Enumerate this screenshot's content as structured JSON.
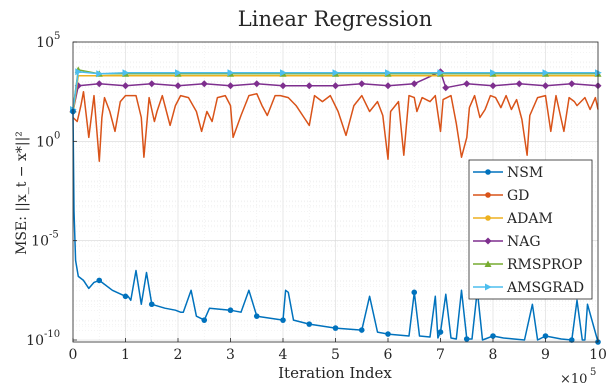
{
  "chart_data": {
    "type": "line",
    "title": "Linear Regression",
    "xlabel": "Iteration Index",
    "ylabel": "MSE: ||x_t − x*||²",
    "x_multiplier_label": "×10",
    "x_multiplier_exp": "5",
    "xlim": [
      0,
      10
    ],
    "ylim_log10": [
      -10.1,
      5
    ],
    "y_log_scale": true,
    "grid": true,
    "legend_position": "right",
    "x_ticks": [
      "0",
      "1",
      "2",
      "3",
      "4",
      "5",
      "6",
      "7",
      "8",
      "9",
      "10"
    ],
    "y_ticks": [
      {
        "base": "10",
        "exp": "5",
        "log": 5
      },
      {
        "base": "10",
        "exp": "0",
        "log": 0
      },
      {
        "base": "10",
        "exp": "-5",
        "log": -5
      },
      {
        "base": "10",
        "exp": "-10",
        "log": -10
      }
    ],
    "series": [
      {
        "name": "NSM",
        "color": "#0072BD",
        "marker": "circle",
        "points": [
          [
            0,
            1.5
          ],
          [
            0.02,
            -3.5
          ],
          [
            0.05,
            -6
          ],
          [
            0.1,
            -6.8
          ],
          [
            0.2,
            -7.0
          ],
          [
            0.3,
            -7.4
          ],
          [
            0.4,
            -7.1
          ],
          [
            0.5,
            -7.0
          ],
          [
            0.75,
            -7.5
          ],
          [
            1.0,
            -7.8
          ],
          [
            1.05,
            -7.8
          ],
          [
            1.1,
            -8.0
          ],
          [
            1.2,
            -6.5
          ],
          [
            1.3,
            -8.2
          ],
          [
            1.4,
            -6.6
          ],
          [
            1.5,
            -8.2
          ],
          [
            1.75,
            -8.4
          ],
          [
            1.95,
            -8.5
          ],
          [
            2.05,
            -8.6
          ],
          [
            2.1,
            -8.6
          ],
          [
            2.25,
            -7.5
          ],
          [
            2.35,
            -8.8
          ],
          [
            2.5,
            -9.0
          ],
          [
            2.6,
            -8.4
          ],
          [
            3.0,
            -8.5
          ],
          [
            3.2,
            -8.6
          ],
          [
            3.35,
            -7.5
          ],
          [
            3.5,
            -8.8
          ],
          [
            4.0,
            -9.0
          ],
          [
            4.05,
            -7.5
          ],
          [
            4.1,
            -7.6
          ],
          [
            4.2,
            -9.0
          ],
          [
            4.5,
            -9.2
          ],
          [
            5.0,
            -9.4
          ],
          [
            5.5,
            -9.5
          ],
          [
            5.65,
            -7.8
          ],
          [
            5.8,
            -9.6
          ],
          [
            6.0,
            -9.7
          ],
          [
            6.4,
            -9.8
          ],
          [
            6.5,
            -7.6
          ],
          [
            6.6,
            -9.8
          ],
          [
            6.8,
            -9.85
          ],
          [
            6.9,
            -7.8
          ],
          [
            6.95,
            -9.9
          ],
          [
            7.0,
            -9.6
          ],
          [
            7.1,
            -7.7
          ],
          [
            7.2,
            -9.9
          ],
          [
            7.3,
            -9.95
          ],
          [
            7.4,
            -7.5
          ],
          [
            7.5,
            -9.95
          ],
          [
            7.6,
            -9.95
          ],
          [
            7.7,
            -7.5
          ],
          [
            7.8,
            -10.0
          ],
          [
            8.0,
            -9.8
          ],
          [
            8.2,
            -9.9
          ],
          [
            8.4,
            -9.95
          ],
          [
            8.6,
            -10.0
          ],
          [
            8.75,
            -8.2
          ],
          [
            8.85,
            -10.0
          ],
          [
            9.0,
            -9.8
          ],
          [
            9.2,
            -9.9
          ],
          [
            9.3,
            -9.95
          ],
          [
            9.5,
            -10.0
          ],
          [
            9.6,
            -8.0
          ],
          [
            9.7,
            -10.0
          ],
          [
            9.75,
            -10.0
          ],
          [
            9.8,
            -8.2
          ],
          [
            10.0,
            -10.1
          ]
        ]
      },
      {
        "name": "GD",
        "color": "#D95319",
        "marker": "none",
        "points": [
          [
            0,
            1.2
          ],
          [
            0.08,
            1.0
          ],
          [
            0.15,
            1.8
          ],
          [
            0.2,
            2.5
          ],
          [
            0.3,
            0.2
          ],
          [
            0.4,
            2.3
          ],
          [
            0.5,
            -1.0
          ],
          [
            0.55,
            1.2
          ],
          [
            0.6,
            2.2
          ],
          [
            0.7,
            1.5
          ],
          [
            0.8,
            0.5
          ],
          [
            0.9,
            2.0
          ],
          [
            1.0,
            2.3
          ],
          [
            1.2,
            2.3
          ],
          [
            1.3,
            1.2
          ],
          [
            1.35,
            -0.8
          ],
          [
            1.45,
            2.2
          ],
          [
            1.55,
            1.0
          ],
          [
            1.6,
            1.5
          ],
          [
            1.7,
            2.3
          ],
          [
            1.8,
            1.3
          ],
          [
            1.85,
            0.8
          ],
          [
            1.95,
            1.8
          ],
          [
            2.05,
            2.3
          ],
          [
            2.2,
            2.2
          ],
          [
            2.35,
            1.5
          ],
          [
            2.45,
            0.5
          ],
          [
            2.55,
            1.5
          ],
          [
            2.65,
            1.0
          ],
          [
            2.75,
            2.2
          ],
          [
            2.9,
            2.3
          ],
          [
            3.0,
            1.8
          ],
          [
            3.05,
            0.2
          ],
          [
            3.2,
            1.3
          ],
          [
            3.35,
            2.3
          ],
          [
            3.5,
            2.4
          ],
          [
            3.6,
            1.8
          ],
          [
            3.7,
            1.3
          ],
          [
            3.85,
            2.3
          ],
          [
            3.95,
            2.3
          ],
          [
            4.1,
            2.2
          ],
          [
            4.25,
            1.8
          ],
          [
            4.4,
            1.2
          ],
          [
            4.5,
            0.8
          ],
          [
            4.6,
            2.3
          ],
          [
            4.75,
            2.0
          ],
          [
            4.9,
            2.3
          ],
          [
            5.05,
            1.5
          ],
          [
            5.2,
            0.3
          ],
          [
            5.35,
            1.8
          ],
          [
            5.5,
            2.3
          ],
          [
            5.65,
            1.5
          ],
          [
            5.8,
            2.0
          ],
          [
            5.9,
            1.3
          ],
          [
            6.0,
            -0.9
          ],
          [
            6.05,
            1.5
          ],
          [
            6.2,
            2.0
          ],
          [
            6.3,
            -0.7
          ],
          [
            6.4,
            2.3
          ],
          [
            6.5,
            2.2
          ],
          [
            6.55,
            1.5
          ],
          [
            6.65,
            2.2
          ],
          [
            6.8,
            2.0
          ],
          [
            6.9,
            2.3
          ],
          [
            7.0,
            0.5
          ],
          [
            7.05,
            2.1
          ],
          [
            7.2,
            2.3
          ],
          [
            7.3,
            0.9
          ],
          [
            7.4,
            -0.8
          ],
          [
            7.5,
            0.2
          ],
          [
            7.55,
            1.7
          ],
          [
            7.65,
            2.3
          ],
          [
            7.75,
            1.2
          ],
          [
            7.85,
            1.6
          ],
          [
            7.95,
            2.3
          ],
          [
            8.05,
            2.2
          ],
          [
            8.15,
            1.7
          ],
          [
            8.25,
            2.3
          ],
          [
            8.35,
            1.6
          ],
          [
            8.45,
            2.1
          ],
          [
            8.55,
            1.1
          ],
          [
            8.65,
            -0.7
          ],
          [
            8.7,
            1.3
          ],
          [
            8.85,
            2.2
          ],
          [
            9.0,
            2.3
          ],
          [
            9.1,
            0.5
          ],
          [
            9.2,
            2.3
          ],
          [
            9.35,
            0.5
          ],
          [
            9.45,
            2.2
          ],
          [
            9.55,
            2.0
          ],
          [
            9.6,
            1.8
          ],
          [
            9.75,
            2.2
          ],
          [
            9.85,
            1.6
          ],
          [
            9.95,
            2.2
          ],
          [
            10.0,
            1.6
          ]
        ]
      },
      {
        "name": "ADAM",
        "color": "#EDB120",
        "marker": "none",
        "points": [
          [
            0,
            1.4
          ],
          [
            0.1,
            3.3
          ],
          [
            0.5,
            3.3
          ],
          [
            1.0,
            3.3
          ],
          [
            2.0,
            3.3
          ],
          [
            3.0,
            3.3
          ],
          [
            4.0,
            3.3
          ],
          [
            5.0,
            3.3
          ],
          [
            6.0,
            3.3
          ],
          [
            7.0,
            3.3
          ],
          [
            8.0,
            3.3
          ],
          [
            9.0,
            3.3
          ],
          [
            10.0,
            3.3
          ]
        ]
      },
      {
        "name": "NAG",
        "color": "#7E2F8E",
        "marker": "diamond",
        "points": [
          [
            0,
            1.5
          ],
          [
            0.1,
            2.8
          ],
          [
            0.5,
            2.9
          ],
          [
            1.0,
            2.8
          ],
          [
            1.5,
            2.9
          ],
          [
            2.0,
            2.8
          ],
          [
            2.5,
            2.9
          ],
          [
            3.0,
            2.8
          ],
          [
            3.5,
            2.9
          ],
          [
            4.0,
            2.8
          ],
          [
            4.5,
            2.8
          ],
          [
            5.0,
            2.8
          ],
          [
            5.5,
            2.9
          ],
          [
            6.0,
            2.8
          ],
          [
            6.5,
            2.9
          ],
          [
            7.0,
            3.5
          ],
          [
            7.1,
            2.7
          ],
          [
            7.5,
            2.9
          ],
          [
            8.0,
            2.8
          ],
          [
            8.5,
            2.9
          ],
          [
            9.0,
            2.8
          ],
          [
            9.5,
            2.9
          ],
          [
            10.0,
            2.8
          ]
        ]
      },
      {
        "name": "RMSPROP",
        "color": "#77AC30",
        "marker": "triangle",
        "points": [
          [
            0,
            1.6
          ],
          [
            0.1,
            3.6
          ],
          [
            0.5,
            3.4
          ],
          [
            1.0,
            3.4
          ],
          [
            2.0,
            3.4
          ],
          [
            3.0,
            3.4
          ],
          [
            4.0,
            3.4
          ],
          [
            5.0,
            3.4
          ],
          [
            6.0,
            3.4
          ],
          [
            7.0,
            3.4
          ],
          [
            8.0,
            3.4
          ],
          [
            9.0,
            3.4
          ],
          [
            10.0,
            3.4
          ]
        ]
      },
      {
        "name": "AMSGRAD",
        "color": "#4DBEEE",
        "marker": "triangle-right",
        "points": [
          [
            0,
            1.6
          ],
          [
            0.1,
            3.5
          ],
          [
            0.5,
            3.4
          ],
          [
            1.0,
            3.45
          ],
          [
            2.0,
            3.45
          ],
          [
            3.0,
            3.45
          ],
          [
            4.0,
            3.45
          ],
          [
            5.0,
            3.45
          ],
          [
            6.0,
            3.45
          ],
          [
            7.0,
            3.45
          ],
          [
            8.0,
            3.45
          ],
          [
            9.0,
            3.45
          ],
          [
            10.0,
            3.45
          ]
        ]
      }
    ]
  }
}
